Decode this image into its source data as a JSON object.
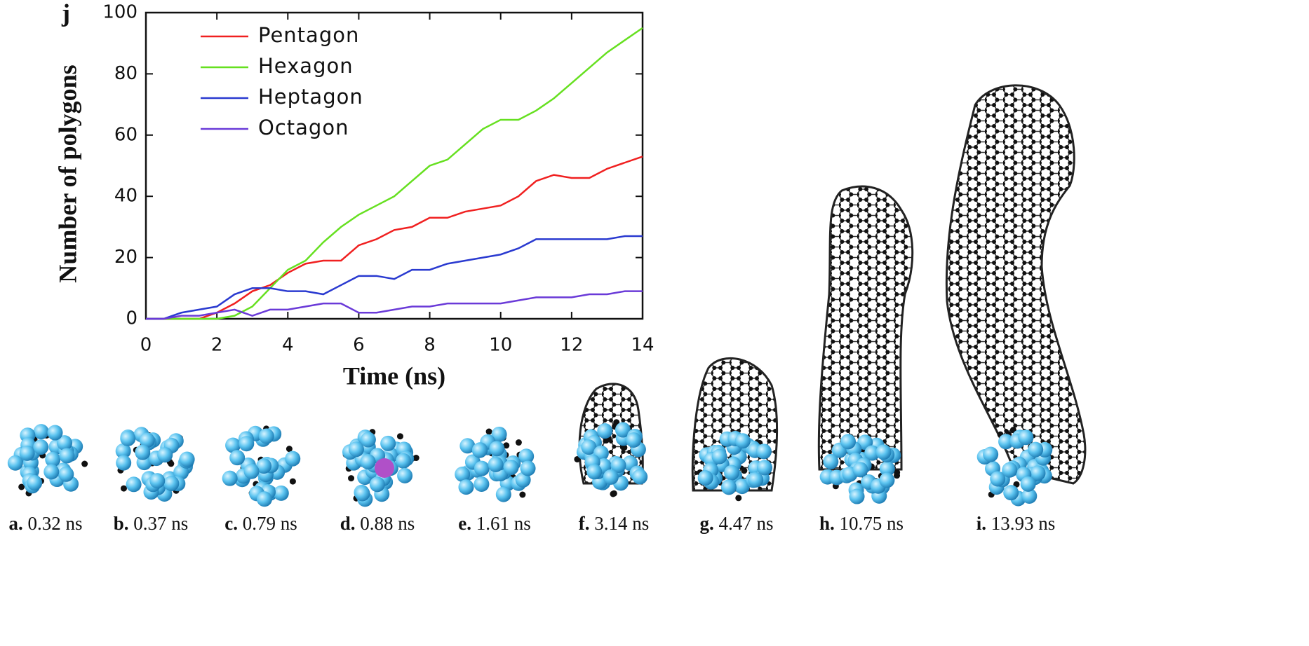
{
  "chart_data": {
    "type": "line",
    "panel_label": "j",
    "xlabel": "Time (ns)",
    "ylabel": "Number of polygons",
    "xlim": [
      0,
      14
    ],
    "xticks": [
      0,
      2,
      4,
      6,
      8,
      10,
      12,
      14
    ],
    "ylim": [
      0,
      100
    ],
    "yticks": [
      0,
      20,
      40,
      60,
      80,
      100
    ],
    "legend": "upper left",
    "x": [
      0,
      0.5,
      1,
      1.5,
      2,
      2.5,
      3,
      3.5,
      4,
      4.5,
      5,
      5.5,
      6,
      6.5,
      7,
      7.5,
      8,
      8.5,
      9,
      9.5,
      10,
      10.5,
      11,
      11.5,
      12,
      12.5,
      13,
      13.5,
      14
    ],
    "series": [
      {
        "name": "Pentagon",
        "color": "#f02020",
        "values": [
          0,
          0,
          0,
          0,
          2,
          5,
          9,
          11,
          15,
          18,
          19,
          19,
          24,
          26,
          29,
          30,
          33,
          33,
          35,
          36,
          37,
          40,
          45,
          47,
          46,
          46,
          49,
          51,
          53
        ]
      },
      {
        "name": "Hexagon",
        "color": "#66e020",
        "values": [
          0,
          0,
          0,
          0,
          0,
          1,
          4,
          10,
          16,
          19,
          25,
          30,
          34,
          37,
          40,
          45,
          50,
          52,
          57,
          62,
          65,
          65,
          68,
          72,
          77,
          82,
          87,
          91,
          95
        ]
      },
      {
        "name": "Heptagon",
        "color": "#2a3ad0",
        "values": [
          0,
          0,
          2,
          3,
          4,
          8,
          10,
          10,
          9,
          9,
          8,
          11,
          14,
          14,
          13,
          16,
          16,
          18,
          19,
          20,
          21,
          23,
          26,
          26,
          26,
          26,
          26,
          27,
          27
        ]
      },
      {
        "name": "Octagon",
        "color": "#6a3ad8",
        "values": [
          0,
          0,
          1,
          1,
          2,
          3,
          1,
          3,
          3,
          4,
          5,
          5,
          2,
          2,
          3,
          4,
          4,
          5,
          5,
          5,
          5,
          6,
          7,
          7,
          7,
          8,
          8,
          9,
          9
        ]
      }
    ]
  },
  "snapshots": [
    {
      "letter": "a.",
      "time": "0.32 ns"
    },
    {
      "letter": "b.",
      "time": "0.37 ns"
    },
    {
      "letter": "c.",
      "time": "0.79 ns"
    },
    {
      "letter": "d.",
      "time": "0.88 ns"
    },
    {
      "letter": "e.",
      "time": "1.61 ns"
    },
    {
      "letter": "f.",
      "time": "3.14 ns"
    },
    {
      "letter": "g.",
      "time": "4.47 ns"
    },
    {
      "letter": "h.",
      "time": "10.75 ns"
    },
    {
      "letter": "i.",
      "time": "13.93 ns"
    }
  ]
}
